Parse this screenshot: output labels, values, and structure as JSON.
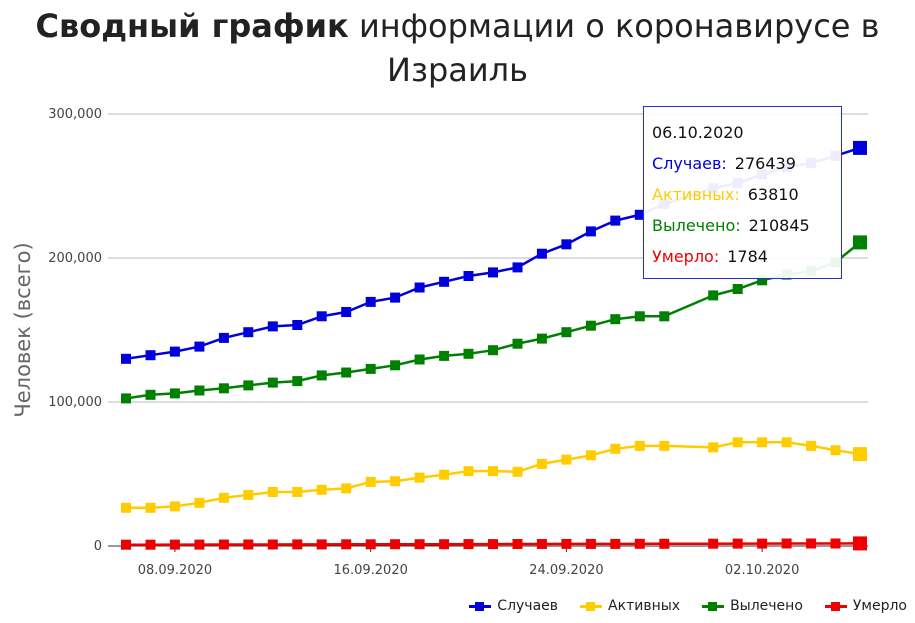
{
  "title": {
    "bold": "Сводный график",
    "rest": " информации о коронавирусе в Израиль"
  },
  "tooltip": {
    "date": "06.10.2020",
    "rows": [
      {
        "label": "Случаев:",
        "value": "276439",
        "color": "#0000dd"
      },
      {
        "label": "Активных:",
        "value": "63810",
        "color": "#ffcc00"
      },
      {
        "label": "Вылечено:",
        "value": "210845",
        "color": "#008000"
      },
      {
        "label": "Умерло:",
        "value": "1784",
        "color": "#ee0000"
      }
    ]
  },
  "chart_data": {
    "type": "line",
    "ylabel": "Человек (всего)",
    "ylim": [
      0,
      300000
    ],
    "yticks": [
      0,
      100000,
      200000,
      300000
    ],
    "ytick_labels": [
      "0",
      "100,000",
      "200,000",
      "300,000"
    ],
    "x_tick_labels": [
      "08.09.2020",
      "16.09.2020",
      "24.09.2020",
      "02.10.2020"
    ],
    "x_tick_dates": [
      "2020-09-08",
      "2020-09-16",
      "2020-09-24",
      "2020-10-02"
    ],
    "x_range": [
      "2020-09-05",
      "2020-10-07"
    ],
    "x": [
      "2020-09-06",
      "2020-09-07",
      "2020-09-08",
      "2020-09-09",
      "2020-09-10",
      "2020-09-11",
      "2020-09-12",
      "2020-09-13",
      "2020-09-14",
      "2020-09-15",
      "2020-09-16",
      "2020-09-17",
      "2020-09-18",
      "2020-09-19",
      "2020-09-20",
      "2020-09-21",
      "2020-09-22",
      "2020-09-23",
      "2020-09-24",
      "2020-09-25",
      "2020-09-26",
      "2020-09-27",
      "2020-09-28",
      "2020-09-30",
      "2020-10-01",
      "2020-10-02",
      "2020-10-03",
      "2020-10-04",
      "2020-10-05",
      "2020-10-06"
    ],
    "grid": true,
    "legend_position": "bottom-right",
    "series": [
      {
        "name": "Случаев",
        "color": "#0000dd",
        "values": [
          130000,
          132500,
          135000,
          138500,
          144500,
          148500,
          152500,
          153500,
          159500,
          162500,
          169500,
          172500,
          179500,
          183500,
          187500,
          190000,
          193500,
          203000,
          209500,
          218500,
          226000,
          230000,
          237500,
          248500,
          252000,
          258000,
          263000,
          266000,
          271000,
          276439
        ]
      },
      {
        "name": "Активных",
        "color": "#ffcc00",
        "values": [
          26500,
          26500,
          27500,
          30000,
          33500,
          35500,
          37500,
          37500,
          39000,
          40000,
          44500,
          45000,
          47500,
          49500,
          52000,
          52000,
          51500,
          57000,
          60000,
          63000,
          67500,
          69500,
          69500,
          68500,
          72000,
          72000,
          72000,
          69500,
          66500,
          63810
        ]
      },
      {
        "name": "Вылечено",
        "color": "#008000",
        "values": [
          102500,
          105000,
          106000,
          108000,
          109500,
          111500,
          113500,
          114500,
          118500,
          120500,
          123000,
          125500,
          129500,
          132000,
          133500,
          136000,
          140500,
          144000,
          148500,
          153000,
          157500,
          159500,
          159500,
          174000,
          178500,
          184500,
          188500,
          191000,
          197000,
          210845
        ]
      },
      {
        "name": "Умерло",
        "color": "#ee0000",
        "values": [
          900,
          920,
          950,
          980,
          1010,
          1040,
          1070,
          1100,
          1130,
          1160,
          1190,
          1220,
          1250,
          1280,
          1310,
          1340,
          1370,
          1400,
          1430,
          1460,
          1490,
          1520,
          1550,
          1600,
          1640,
          1680,
          1720,
          1750,
          1770,
          1784
        ]
      }
    ]
  }
}
